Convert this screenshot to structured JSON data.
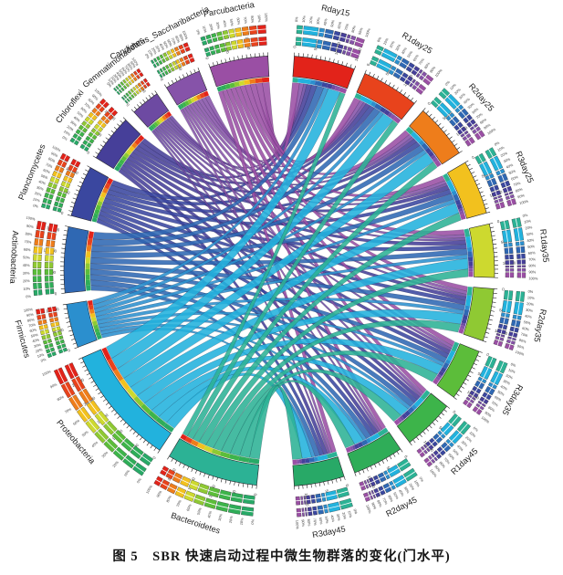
{
  "figure": {
    "caption": "图 5　SBR 快速启动过程中微生物群落的变化(门水平)"
  },
  "chart_data": {
    "type": "chord",
    "title": "SBR 快速启动过程中微生物群落的变化(门水平)",
    "legend_position": "none",
    "layout": {
      "taxa_side": "left-half",
      "samples_side": "right-half",
      "grid": "off"
    },
    "percent_tick_step": 10,
    "percent_tick_labels": [
      "0%",
      "10%",
      "20%",
      "30%",
      "40%",
      "50%",
      "60%",
      "70%",
      "80%",
      "90%",
      "100%"
    ],
    "value_tick_step": 50000,
    "value_unit": "reads",
    "taxa": [
      {
        "name": "Parcubacteria",
        "color": "#9a4fa4",
        "total": 145000
      },
      {
        "name": "Candidatus_Saccharibacteria",
        "color": "#8653a9",
        "total": 90000
      },
      {
        "name": "Gemmatimonadetes",
        "color": "#6d4aa2",
        "total": 72000
      },
      {
        "name": "Chloroflexi",
        "color": "#463f99",
        "total": 118000
      },
      {
        "name": "Planctomycetes",
        "color": "#3a479f",
        "total": 127000
      },
      {
        "name": "Actinobacteria",
        "color": "#2f68b3",
        "total": 163000
      },
      {
        "name": "Firmicutes",
        "color": "#2b8fce",
        "total": 109000
      },
      {
        "name": "Proteobacteria",
        "color": "#22b2dd",
        "total": 299000
      },
      {
        "name": "Bacteroidetes",
        "color": "#2cb295",
        "total": 227000
      }
    ],
    "samples": [
      {
        "name": "Rday15",
        "color": "#e2231a",
        "total": 153000
      },
      {
        "name": "R1day25",
        "color": "#e8431c",
        "total": 144000
      },
      {
        "name": "R2day25",
        "color": "#ee7d1b",
        "total": 138000
      },
      {
        "name": "R3day25",
        "color": "#f2c11e",
        "total": 136000
      },
      {
        "name": "R1day35",
        "color": "#cdd92f",
        "total": 134000
      },
      {
        "name": "R2day35",
        "color": "#8fc933",
        "total": 132000
      },
      {
        "name": "R3day35",
        "color": "#5cbd3a",
        "total": 130000
      },
      {
        "name": "R1day45",
        "color": "#3db44a",
        "total": 129000
      },
      {
        "name": "R2day45",
        "color": "#2fad58",
        "total": 128000
      },
      {
        "name": "R3day45",
        "color": "#28a967",
        "total": 126000
      }
    ],
    "matrix_rows": "taxa",
    "matrix_cols": "samples",
    "matrix": [
      [
        20000,
        18000,
        16000,
        15000,
        14000,
        13000,
        13000,
        12000,
        12000,
        12000
      ],
      [
        12000,
        11000,
        10000,
        9000,
        9000,
        9000,
        8000,
        8000,
        7000,
        7000
      ],
      [
        9000,
        8000,
        8000,
        7000,
        7000,
        7000,
        7000,
        7000,
        6000,
        6000
      ],
      [
        14000,
        13000,
        12000,
        12000,
        12000,
        11000,
        11000,
        11000,
        11000,
        11000
      ],
      [
        15000,
        14000,
        13000,
        13000,
        13000,
        12000,
        12000,
        12000,
        12000,
        11000
      ],
      [
        20000,
        18000,
        17000,
        17000,
        16000,
        16000,
        15000,
        15000,
        15000,
        14000
      ],
      [
        13000,
        12000,
        11000,
        11000,
        11000,
        11000,
        10000,
        10000,
        10000,
        10000
      ],
      [
        35000,
        33000,
        32000,
        31000,
        30000,
        29000,
        28000,
        27000,
        27000,
        27000
      ],
      [
        15000,
        17000,
        19000,
        21000,
        22000,
        24000,
        26000,
        27000,
        28000,
        28000
      ]
    ]
  }
}
